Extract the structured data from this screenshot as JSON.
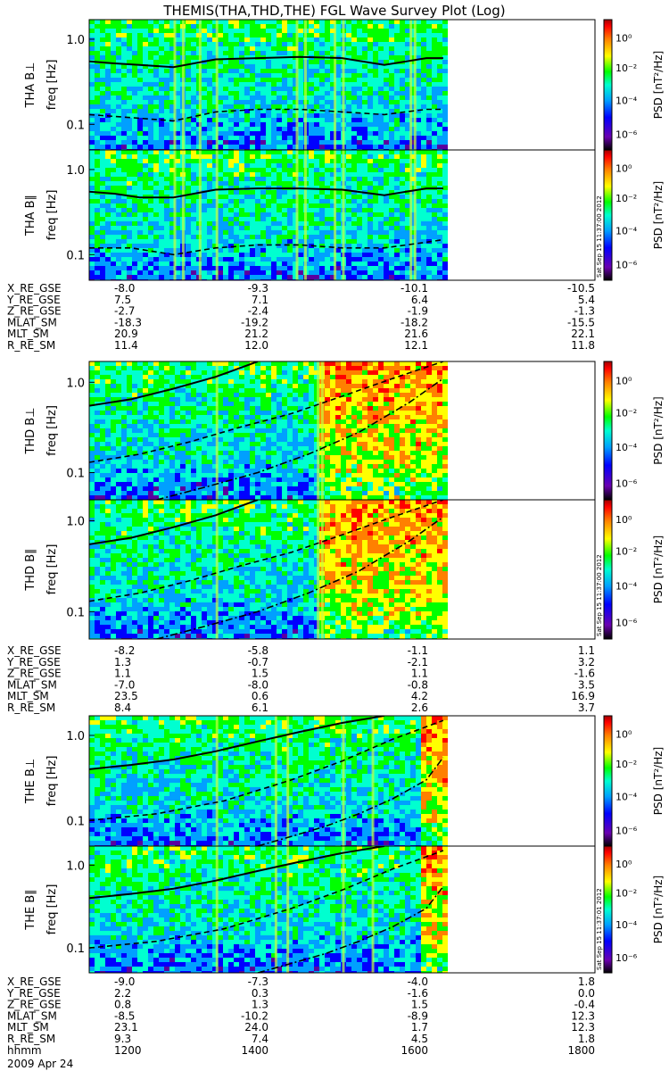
{
  "title": "THEMIS(THA,THD,THE) FGL Wave Survey Plot (Log)",
  "date_label": "2009 Apr 24",
  "colorbar": {
    "label": "PSD [nT²/Hz]",
    "ticks": [
      "10⁰",
      "10⁻²",
      "10⁻⁴",
      "10⁻⁶"
    ],
    "stamps": [
      "Sat Sep 15 11:37:00 2012",
      "Sat Sep 15 11:37:00 2012",
      "Sat Sep 15 11:37:01 2012"
    ]
  },
  "freq_ticks": [
    "1.0",
    "0.1"
  ],
  "colors": {
    "spectrum": [
      "#000000",
      "#5a00a0",
      "#0000ff",
      "#00a0ff",
      "#00ffd0",
      "#00ff00",
      "#ffff00",
      "#ff8000",
      "#ff0000",
      "#b00000"
    ]
  },
  "chart_data": [
    {
      "type": "heatmap",
      "probe": "THA",
      "component": "perp",
      "ylabel": "THA B⊥",
      "yunit": "freq [Hz]",
      "yscale": "log",
      "ylim": [
        0.05,
        1.7
      ],
      "xlim": [
        1200,
        1800
      ],
      "data_end": 1620,
      "series": [
        {
          "name": "solid",
          "x": [
            1200,
            1230,
            1260,
            1300,
            1350,
            1400,
            1450,
            1500,
            1550,
            1600,
            1620
          ],
          "y": [
            0.55,
            0.52,
            0.5,
            0.47,
            0.58,
            0.6,
            0.62,
            0.6,
            0.5,
            0.6,
            0.6
          ]
        },
        {
          "name": "dashed",
          "x": [
            1200,
            1250,
            1300,
            1350,
            1400,
            1450,
            1500,
            1550,
            1600,
            1620
          ],
          "y": [
            0.13,
            0.12,
            0.11,
            0.14,
            0.15,
            0.15,
            0.14,
            0.13,
            0.15,
            0.15
          ]
        }
      ]
    },
    {
      "type": "heatmap",
      "probe": "THA",
      "component": "par",
      "ylabel": "THA B∥",
      "yunit": "freq [Hz]",
      "yscale": "log",
      "ylim": [
        0.05,
        1.7
      ],
      "xlim": [
        1200,
        1800
      ],
      "data_end": 1620,
      "series": [
        {
          "name": "solid",
          "x": [
            1200,
            1230,
            1260,
            1300,
            1350,
            1400,
            1450,
            1500,
            1550,
            1600,
            1620
          ],
          "y": [
            0.55,
            0.52,
            0.47,
            0.47,
            0.58,
            0.6,
            0.6,
            0.58,
            0.5,
            0.6,
            0.6
          ]
        },
        {
          "name": "dashed",
          "x": [
            1200,
            1250,
            1300,
            1350,
            1400,
            1450,
            1500,
            1550,
            1600,
            1620
          ],
          "y": [
            0.12,
            0.12,
            0.1,
            0.12,
            0.13,
            0.13,
            0.12,
            0.12,
            0.14,
            0.15
          ]
        }
      ]
    },
    {
      "type": "heatmap",
      "probe": "THD",
      "component": "perp",
      "ylabel": "THD B⊥",
      "yunit": "freq [Hz]",
      "yscale": "log",
      "ylim": [
        0.05,
        1.7
      ],
      "xlim": [
        1200,
        1800
      ],
      "data_end": 1620,
      "series": [
        {
          "name": "solid",
          "x": [
            1200,
            1250,
            1300,
            1350,
            1400
          ],
          "y": [
            0.55,
            0.65,
            0.85,
            1.15,
            1.7
          ]
        },
        {
          "name": "dashed",
          "x": [
            1200,
            1260,
            1320,
            1380,
            1440,
            1500,
            1560,
            1620
          ],
          "y": [
            0.13,
            0.16,
            0.22,
            0.32,
            0.45,
            0.7,
            1.1,
            1.7
          ]
        },
        {
          "name": "dash-dot",
          "x": [
            1280,
            1340,
            1400,
            1460,
            1520,
            1580,
            1620
          ],
          "y": [
            0.05,
            0.07,
            0.1,
            0.16,
            0.28,
            0.6,
            1.1
          ]
        }
      ]
    },
    {
      "type": "heatmap",
      "probe": "THD",
      "component": "par",
      "ylabel": "THD B∥",
      "yunit": "freq [Hz]",
      "yscale": "log",
      "ylim": [
        0.05,
        1.7
      ],
      "xlim": [
        1200,
        1800
      ],
      "data_end": 1620,
      "series": [
        {
          "name": "solid",
          "x": [
            1200,
            1250,
            1300,
            1350,
            1400
          ],
          "y": [
            0.55,
            0.65,
            0.85,
            1.15,
            1.7
          ]
        },
        {
          "name": "dashed",
          "x": [
            1200,
            1260,
            1320,
            1380,
            1440,
            1500,
            1560,
            1620
          ],
          "y": [
            0.13,
            0.16,
            0.22,
            0.32,
            0.45,
            0.7,
            1.1,
            1.7
          ]
        },
        {
          "name": "dash-dot",
          "x": [
            1280,
            1340,
            1400,
            1460,
            1520,
            1580,
            1620
          ],
          "y": [
            0.05,
            0.07,
            0.1,
            0.16,
            0.28,
            0.6,
            1.1
          ]
        }
      ]
    },
    {
      "type": "heatmap",
      "probe": "THE",
      "component": "perp",
      "ylabel": "THE B⊥",
      "yunit": "freq [Hz]",
      "yscale": "log",
      "ylim": [
        0.05,
        1.7
      ],
      "xlim": [
        1200,
        1800
      ],
      "data_end": 1620,
      "series": [
        {
          "name": "solid",
          "x": [
            1200,
            1250,
            1300,
            1350,
            1400,
            1450,
            1500,
            1550
          ],
          "y": [
            0.4,
            0.45,
            0.52,
            0.65,
            0.85,
            1.1,
            1.4,
            1.7
          ]
        },
        {
          "name": "dashed",
          "x": [
            1200,
            1280,
            1360,
            1440,
            1500,
            1560,
            1620
          ],
          "y": [
            0.1,
            0.12,
            0.17,
            0.3,
            0.5,
            0.9,
            1.5
          ]
        },
        {
          "name": "dash-dot",
          "x": [
            1400,
            1440,
            1480,
            1520,
            1560,
            1600,
            1620
          ],
          "y": [
            0.05,
            0.065,
            0.085,
            0.12,
            0.18,
            0.3,
            0.55
          ]
        }
      ]
    },
    {
      "type": "heatmap",
      "probe": "THE",
      "component": "par",
      "ylabel": "THE B∥",
      "yunit": "freq [Hz]",
      "yscale": "log",
      "ylim": [
        0.05,
        1.7
      ],
      "xlim": [
        1200,
        1800
      ],
      "data_end": 1620,
      "series": [
        {
          "name": "solid",
          "x": [
            1200,
            1250,
            1300,
            1350,
            1400,
            1450,
            1500,
            1550
          ],
          "y": [
            0.4,
            0.45,
            0.52,
            0.65,
            0.85,
            1.1,
            1.4,
            1.7
          ]
        },
        {
          "name": "dashed",
          "x": [
            1200,
            1280,
            1360,
            1440,
            1500,
            1560,
            1620
          ],
          "y": [
            0.1,
            0.12,
            0.17,
            0.3,
            0.5,
            0.9,
            1.5
          ]
        },
        {
          "name": "dash-dot",
          "x": [
            1400,
            1440,
            1480,
            1520,
            1560,
            1600,
            1620
          ],
          "y": [
            0.05,
            0.065,
            0.085,
            0.12,
            0.18,
            0.3,
            0.55
          ]
        }
      ]
    }
  ],
  "ephemeris": [
    {
      "probe": "THA",
      "rows": [
        {
          "label": "X_RE_GSE",
          "values": [
            "-8.0",
            "-9.3",
            "-10.1",
            "-10.5"
          ]
        },
        {
          "label": "Y_RE_GSE",
          "values": [
            "7.5",
            "7.1",
            "6.4",
            "5.4"
          ]
        },
        {
          "label": "Z_RE_GSE",
          "values": [
            "-2.7",
            "-2.4",
            "-1.9",
            "-1.3"
          ]
        },
        {
          "label": "MLAT_SM",
          "values": [
            "-18.3",
            "-19.2",
            "-18.2",
            "-15.5"
          ]
        },
        {
          "label": "MLT_SM",
          "values": [
            "20.9",
            "21.2",
            "21.6",
            "22.1"
          ]
        },
        {
          "label": "R_RE_SM",
          "values": [
            "11.4",
            "12.0",
            "12.1",
            "11.8"
          ]
        }
      ]
    },
    {
      "probe": "THD",
      "rows": [
        {
          "label": "X_RE_GSE",
          "values": [
            "-8.2",
            "-5.8",
            "-1.1",
            "1.1"
          ]
        },
        {
          "label": "Y_RE_GSE",
          "values": [
            "1.3",
            "-0.7",
            "-2.1",
            "3.2"
          ]
        },
        {
          "label": "Z_RE_GSE",
          "values": [
            "1.1",
            "1.5",
            "1.1",
            "-1.6"
          ]
        },
        {
          "label": "MLAT_SM",
          "values": [
            "-7.0",
            "-8.0",
            "-0.8",
            "3.5"
          ]
        },
        {
          "label": "MLT_SM",
          "values": [
            "23.5",
            "0.6",
            "4.2",
            "16.9"
          ]
        },
        {
          "label": "R_RE_SM",
          "values": [
            "8.4",
            "6.1",
            "2.6",
            "3.7"
          ]
        }
      ]
    },
    {
      "probe": "THE",
      "rows": [
        {
          "label": "X_RE_GSE",
          "values": [
            "-9.0",
            "-7.3",
            "-4.0",
            "1.8"
          ]
        },
        {
          "label": "Y_RE_GSE",
          "values": [
            "2.2",
            "0.3",
            "-1.6",
            "0.0"
          ]
        },
        {
          "label": "Z_RE_GSE",
          "values": [
            "0.8",
            "1.3",
            "1.5",
            "-0.4"
          ]
        },
        {
          "label": "MLAT_SM",
          "values": [
            "-8.5",
            "-10.2",
            "-8.9",
            "12.3"
          ]
        },
        {
          "label": "MLT_SM",
          "values": [
            "23.1",
            "24.0",
            "1.7",
            "12.3"
          ]
        },
        {
          "label": "R_RE_SM",
          "values": [
            "9.3",
            "7.4",
            "4.5",
            "1.8"
          ]
        },
        {
          "label": "hhmm",
          "values": [
            "1200",
            "1400",
            "1600",
            "1800"
          ]
        }
      ]
    }
  ]
}
